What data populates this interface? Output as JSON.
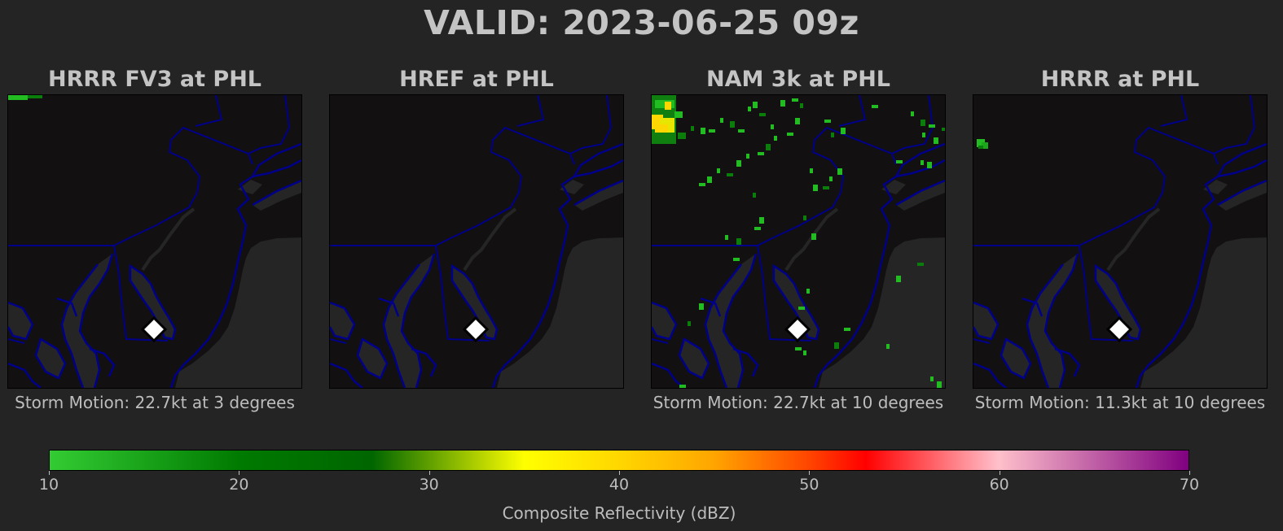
{
  "title": "VALID: 2023-06-25 09z",
  "panels": [
    {
      "title": "HRRR FV3 at PHL",
      "storm_motion": "Storm Motion: 22.7kt at 3 degrees",
      "echoes": "fv3"
    },
    {
      "title": "HREF at PHL",
      "storm_motion": "",
      "echoes": "none"
    },
    {
      "title": "NAM 3k at PHL",
      "storm_motion": "Storm Motion: 22.7kt at 10 degrees",
      "echoes": "nam"
    },
    {
      "title": "HRRR at PHL",
      "storm_motion": "Storm Motion: 11.3kt at 10 degrees",
      "echoes": "hrrr"
    }
  ],
  "station_marker": {
    "label_site": "PHL",
    "icon": "diamond-marker-icon"
  },
  "colorbar": {
    "label": "Composite Reflectivity (dBZ)",
    "min": 10,
    "max": 70,
    "ticks": [
      "10",
      "20",
      "30",
      "40",
      "50",
      "60",
      "70"
    ],
    "stops": [
      {
        "value": 10,
        "color": "#33cc33"
      },
      {
        "value": 20,
        "color": "#007a00"
      },
      {
        "value": 27,
        "color": "#006600"
      },
      {
        "value": 35,
        "color": "#ffff00"
      },
      {
        "value": 40,
        "color": "#ffd700"
      },
      {
        "value": 45,
        "color": "#ffa500"
      },
      {
        "value": 50,
        "color": "#ff4500"
      },
      {
        "value": 53,
        "color": "#ff0000"
      },
      {
        "value": 60,
        "color": "#ffc0cb"
      },
      {
        "value": 70,
        "color": "#800080"
      }
    ]
  },
  "colors": {
    "background": "#242424",
    "land": "#121010",
    "water": "#252525",
    "borders": "#00008b",
    "marker_fill": "#ffffff",
    "marker_edge": "#000000"
  }
}
